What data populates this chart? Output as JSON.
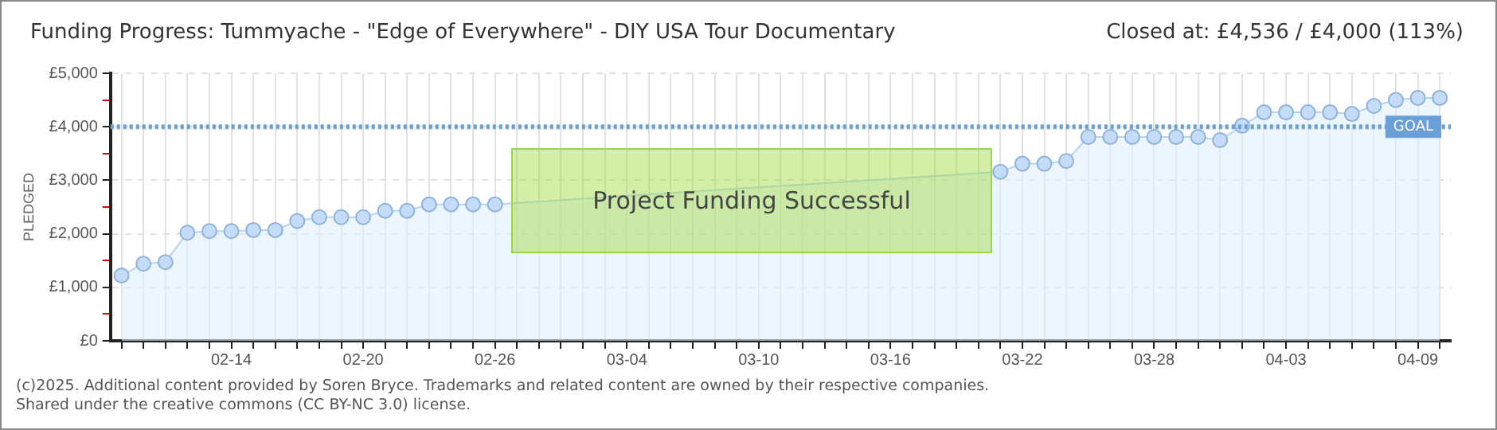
{
  "chart_data": {
    "type": "area",
    "title": "Funding Progress: Tummyache - \"Edge of Everywhere\" - DIY USA Tour Documentary",
    "subtitle": "Closed at:  £4,536 / £4,000 (113%)",
    "ylabel": "PLEDGED",
    "categories": [
      null,
      null,
      null,
      null,
      null,
      "02-14",
      null,
      null,
      null,
      null,
      null,
      "02-20",
      null,
      null,
      null,
      null,
      null,
      "02-26",
      null,
      null,
      null,
      null,
      null,
      "03-04",
      null,
      null,
      null,
      null,
      null,
      "03-10",
      null,
      null,
      null,
      null,
      null,
      "03-16",
      null,
      null,
      null,
      null,
      null,
      "03-22",
      null,
      null,
      null,
      null,
      null,
      "03-28",
      null,
      null,
      null,
      null,
      null,
      "04-03",
      null,
      null,
      null,
      null,
      null,
      "04-09",
      null
    ],
    "series": [
      {
        "color": "#b5d3f3",
        "values": [
          1220,
          1440,
          1470,
          2020,
          2050,
          2050,
          2070,
          2070,
          2240,
          2310,
          2310,
          2310,
          2430,
          2430,
          2550,
          2550,
          2550,
          2550,
          null,
          null,
          null,
          null,
          null,
          null,
          null,
          null,
          null,
          null,
          null,
          null,
          null,
          null,
          null,
          null,
          null,
          null,
          null,
          null,
          null,
          null,
          3160,
          3310,
          3310,
          3360,
          3810,
          3810,
          3810,
          3810,
          3810,
          3810,
          3750,
          4020,
          4270,
          4270,
          4270,
          4270,
          4240,
          4390,
          4500,
          4540,
          4540
        ]
      }
    ],
    "ylim": [
      0,
      5000
    ],
    "yticks": [
      {
        "value": 0,
        "label": "£0"
      },
      {
        "value": 500,
        "label": null
      },
      {
        "value": 1000,
        "label": "£1,000"
      },
      {
        "value": 1500,
        "label": null
      },
      {
        "value": 2000,
        "label": "£2,000"
      },
      {
        "value": 2500,
        "label": null
      },
      {
        "value": 3000,
        "label": "£3,000"
      },
      {
        "value": 3500,
        "label": null
      },
      {
        "value": 4000,
        "label": "£4,000"
      },
      {
        "value": 4500,
        "label": null
      },
      {
        "value": 5000,
        "label": "£5,000"
      }
    ],
    "ref_lines": [
      {
        "axis": "y",
        "value": 4000,
        "label": "GOAL",
        "color": "#6a9fd8",
        "line_style": "dotted"
      }
    ],
    "annotations": [
      "Project Funding Successful",
      "(c)2025. Additional content provided by Soren Bryce. Trademarks and related content are owned by their respective companies.",
      "Shared under the creative commons (CC BY-NC 3.0) license."
    ],
    "grid": true,
    "legend": false,
    "marker": "circle",
    "line_style": "solid"
  }
}
